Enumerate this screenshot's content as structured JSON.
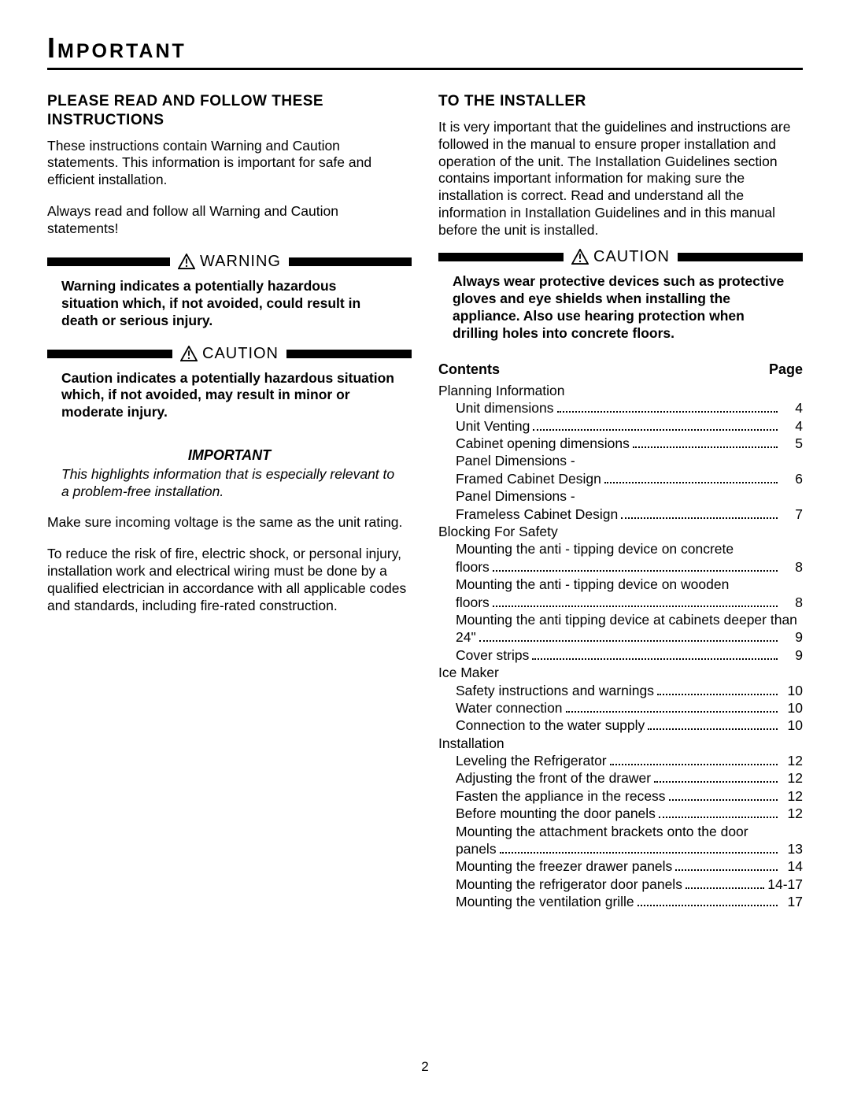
{
  "title": "Important",
  "page_number": "2",
  "left": {
    "heading": "Please Read and Follow These Instructions",
    "p1": "These instructions contain Warning and Caution statements. This information is important for safe and efficient installation.",
    "p2": "Always read and follow all Warning and Caution statements!",
    "warning_label": "WARNING",
    "warning_body": "Warning indicates a potentially hazardous situation which, if not avoided, could result in death or serious injury.",
    "caution_label": "CAUTION",
    "caution_body": "Caution indicates a potentially hazardous situation which, if not avoided, may result in minor or moderate injury.",
    "important_label": "IMPORTANT",
    "important_body": "This highlights information that is especially relevant to a problem-free installation.",
    "p3": "Make sure incoming voltage is the same as the unit rating.",
    "p4": "To reduce the risk of fire, electric shock, or personal injury, installation work and electrical wiring must be done by a qualified electrician in accordance with all applicable codes and standards, including fire-rated construction."
  },
  "right": {
    "heading": "To The Installer",
    "p1": "It is very important that the guidelines and instructions are followed in the manual to ensure proper installation and operation of the unit. The Installation Guidelines section contains important information for making sure the installation is correct. Read and understand all the information in Installation Guidelines and in this manual before the unit is installed.",
    "caution_label": "CAUTION",
    "caution_body": "Always wear protective devices such as protective gloves and eye shields when installing the appliance. Also use hearing protection when drilling holes into concrete floors.",
    "toc_title": "Contents",
    "toc_page_label": "Page",
    "toc": [
      {
        "section": "Planning Information",
        "items": [
          {
            "label": "Unit dimensions",
            "page": "4"
          },
          {
            "label": "Unit Venting",
            "page": "4"
          },
          {
            "label": "Cabinet opening dimensions",
            "page": "5"
          },
          {
            "label": "Panel Dimensions -"
          },
          {
            "label": "Framed Cabinet Design",
            "page": "6"
          },
          {
            "label": "Panel Dimensions -"
          },
          {
            "label": "Frameless Cabinet Design",
            "page": "7"
          }
        ]
      },
      {
        "section": "Blocking For Safety",
        "items": [
          {
            "label": "Mounting the anti - tipping device on concrete floors",
            "page": "8",
            "wrap": true
          },
          {
            "label": "Mounting the anti - tipping device on wooden floors",
            "page": "8",
            "wrap": true
          },
          {
            "label": "Mounting the anti tipping device at cabinets deeper than 24\"",
            "page": "9",
            "wrap": true
          },
          {
            "label": "Cover strips",
            "page": "9"
          }
        ]
      },
      {
        "section": "Ice Maker",
        "items": [
          {
            "label": "Safety instructions and warnings",
            "page": "10"
          },
          {
            "label": "Water connection",
            "page": "10"
          },
          {
            "label": "Connection to the water supply",
            "page": "10"
          }
        ]
      },
      {
        "section": "Installation",
        "items": [
          {
            "label": "Leveling the Refrigerator",
            "page": "12"
          },
          {
            "label": "Adjusting the front of the drawer",
            "page": "12"
          },
          {
            "label": "Fasten the appliance in the recess",
            "page": "12"
          },
          {
            "label": "Before mounting the door panels",
            "page": "12"
          },
          {
            "label": "Mounting the attachment brackets onto the door panels",
            "page": "13",
            "wrap": true
          },
          {
            "label": "Mounting the freezer drawer panels",
            "page": "14"
          },
          {
            "label": "Mounting the refrigerator door panels",
            "page": "14-17"
          },
          {
            "label": "Mounting the ventilation grille",
            "page": "17"
          }
        ]
      }
    ]
  }
}
